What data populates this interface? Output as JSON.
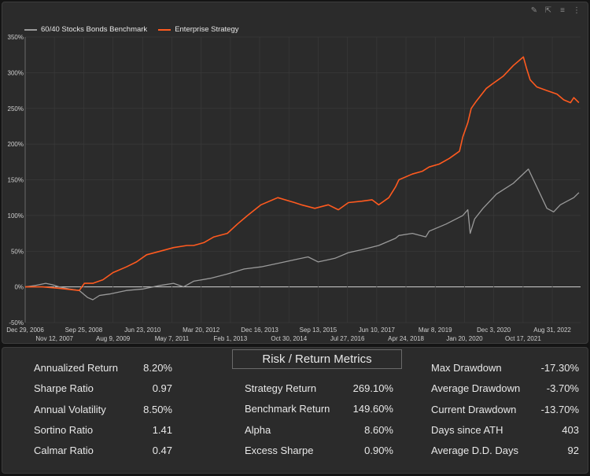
{
  "toolbar": {
    "icons": [
      "pencil-icon",
      "export-icon",
      "filter-icon",
      "more-icon"
    ]
  },
  "chart_data": {
    "type": "line",
    "title": "",
    "xlabel": "",
    "ylabel": "",
    "ylim": [
      -50,
      350
    ],
    "y_ticks": [
      -50,
      0,
      50,
      100,
      150,
      200,
      250,
      300,
      350
    ],
    "y_tick_labels": [
      "-50%",
      "0%",
      "50%",
      "100%",
      "150%",
      "200%",
      "250%",
      "300%",
      "350%"
    ],
    "xlim": [
      2006.99,
      2023.5
    ],
    "x_ticks_row1": [
      {
        "label": "Dec 29, 2006",
        "x": 2006.99
      },
      {
        "label": "Sep 25, 2008",
        "x": 2008.73
      },
      {
        "label": "Jun 23, 2010",
        "x": 2010.48
      },
      {
        "label": "Mar 20, 2012",
        "x": 2012.22
      },
      {
        "label": "Dec 16, 2013",
        "x": 2013.96
      },
      {
        "label": "Sep 13, 2015",
        "x": 2015.7
      },
      {
        "label": "Jun 10, 2017",
        "x": 2017.44
      },
      {
        "label": "Mar 8, 2019",
        "x": 2019.18
      },
      {
        "label": "Dec 3, 2020",
        "x": 2020.92
      },
      {
        "label": "Aug 31, 2022",
        "x": 2022.66
      }
    ],
    "x_ticks_row2": [
      {
        "label": "Nov 12, 2007",
        "x": 2007.86
      },
      {
        "label": "Aug 9, 2009",
        "x": 2009.6
      },
      {
        "label": "May 7, 2011",
        "x": 2011.35
      },
      {
        "label": "Feb 1, 2013",
        "x": 2013.09
      },
      {
        "label": "Oct 30, 2014",
        "x": 2014.83
      },
      {
        "label": "Jul 27, 2016",
        "x": 2016.57
      },
      {
        "label": "Apr 24, 2018",
        "x": 2018.31
      },
      {
        "label": "Jan 20, 2020",
        "x": 2020.05
      },
      {
        "label": "Oct 17, 2021",
        "x": 2021.79
      }
    ],
    "legend": "top-left",
    "grid": true,
    "series": [
      {
        "name": "60/40 Stocks Bonds Benchmark",
        "color": "#9a9a9a",
        "x": [
          2006.99,
          2007.3,
          2007.6,
          2007.8,
          2008.0,
          2008.3,
          2008.6,
          2008.85,
          2009.0,
          2009.2,
          2009.5,
          2009.8,
          2010.0,
          2010.5,
          2011.0,
          2011.4,
          2011.7,
          2012.0,
          2012.5,
          2013.0,
          2013.5,
          2014.0,
          2014.5,
          2015.0,
          2015.4,
          2015.7,
          2016.0,
          2016.2,
          2016.6,
          2017.0,
          2017.5,
          2018.0,
          2018.1,
          2018.5,
          2018.9,
          2019.0,
          2019.5,
          2020.0,
          2020.15,
          2020.22,
          2020.35,
          2020.6,
          2021.0,
          2021.5,
          2021.95,
          2022.1,
          2022.3,
          2022.5,
          2022.7,
          2022.9,
          2023.1,
          2023.3,
          2023.45
        ],
        "y": [
          0,
          2,
          5,
          3,
          0,
          -3,
          -5,
          -15,
          -18,
          -12,
          -10,
          -7,
          -5,
          -3,
          2,
          5,
          0,
          8,
          12,
          18,
          25,
          28,
          33,
          38,
          42,
          35,
          38,
          40,
          48,
          52,
          58,
          68,
          72,
          75,
          70,
          78,
          88,
          100,
          108,
          75,
          95,
          110,
          130,
          145,
          165,
          150,
          130,
          110,
          105,
          115,
          120,
          125,
          132
        ]
      },
      {
        "name": "Enterprise Strategy",
        "color": "#ff5a1f",
        "x": [
          2006.99,
          2007.5,
          2008.0,
          2008.6,
          2008.75,
          2009.0,
          2009.3,
          2009.6,
          2010.0,
          2010.3,
          2010.6,
          2011.0,
          2011.4,
          2011.8,
          2012.0,
          2012.3,
          2012.6,
          2013.0,
          2013.3,
          2013.6,
          2014.0,
          2014.5,
          2015.0,
          2015.2,
          2015.6,
          2016.0,
          2016.3,
          2016.6,
          2017.0,
          2017.3,
          2017.5,
          2017.8,
          2018.0,
          2018.1,
          2018.5,
          2018.8,
          2019.0,
          2019.3,
          2019.6,
          2019.9,
          2020.0,
          2020.15,
          2020.25,
          2020.4,
          2020.7,
          2020.9,
          2021.2,
          2021.5,
          2021.8,
          2021.9,
          2022.0,
          2022.2,
          2022.5,
          2022.8,
          2023.0,
          2023.2,
          2023.3,
          2023.45
        ],
        "y": [
          0,
          0,
          -2,
          -5,
          5,
          5,
          10,
          20,
          28,
          35,
          45,
          50,
          55,
          58,
          58,
          62,
          70,
          75,
          88,
          100,
          115,
          125,
          118,
          115,
          110,
          115,
          108,
          118,
          120,
          122,
          115,
          125,
          140,
          150,
          158,
          162,
          168,
          172,
          180,
          190,
          210,
          230,
          250,
          260,
          278,
          285,
          295,
          310,
          322,
          305,
          290,
          280,
          275,
          270,
          262,
          258,
          265,
          258
        ]
      }
    ]
  },
  "metrics": {
    "title": "Risk / Return Metrics",
    "left": [
      {
        "label": "Annualized Return",
        "value": "8.20%"
      },
      {
        "label": "Sharpe Ratio",
        "value": "0.97"
      },
      {
        "label": "Annual Volatility",
        "value": "8.50%"
      },
      {
        "label": "Sortino Ratio",
        "value": "1.41"
      },
      {
        "label": "Calmar Ratio",
        "value": "0.47"
      }
    ],
    "middle": [
      {
        "label": "Strategy Return",
        "value": "269.10%"
      },
      {
        "label": "Benchmark Return",
        "value": "149.60%"
      },
      {
        "label": "Alpha",
        "value": "8.60%"
      },
      {
        "label": "Excess Sharpe",
        "value": "0.90%"
      }
    ],
    "right": [
      {
        "label": "Max Drawdown",
        "value": "-17.30%"
      },
      {
        "label": "Average Drawdown",
        "value": "-3.70%"
      },
      {
        "label": "Current Drawdown",
        "value": "-13.70%"
      },
      {
        "label": "Days since ATH",
        "value": "403"
      },
      {
        "label": "Average D.D. Days",
        "value": "92"
      }
    ]
  }
}
